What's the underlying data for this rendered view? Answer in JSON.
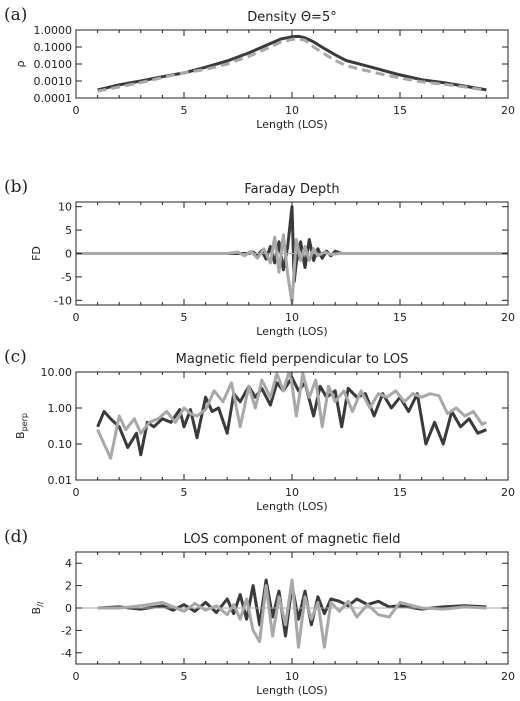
{
  "chart_data": [
    {
      "panel": "(a)",
      "type": "line",
      "title": "Density Θ=5°",
      "xlabel": "Length (LOS)",
      "ylabel": "ρ",
      "yscale": "log",
      "xlim": [
        0,
        20
      ],
      "ylim": [
        0.0001,
        1.0
      ],
      "xticks": [
        "0",
        "5",
        "10",
        "15",
        "20"
      ],
      "yticks": [
        "0.0001",
        "0.0010",
        "0.0100",
        "0.1000",
        "1.0000"
      ],
      "grid": false,
      "series": [
        {
          "style": "solid",
          "color": "#3a3a3a",
          "x": [
            1,
            2,
            3,
            4,
            5,
            6,
            7,
            8,
            9,
            9.5,
            10,
            10.3,
            10.6,
            11,
            11.5,
            12,
            12.5,
            13,
            14,
            15,
            16,
            17,
            18,
            19
          ],
          "y": [
            0.0003,
            0.0006,
            0.001,
            0.0018,
            0.003,
            0.0065,
            0.015,
            0.045,
            0.16,
            0.3,
            0.4,
            0.42,
            0.35,
            0.2,
            0.08,
            0.035,
            0.016,
            0.011,
            0.005,
            0.0023,
            0.0012,
            0.0008,
            0.0005,
            0.0003
          ]
        },
        {
          "style": "dashed",
          "color": "#a8a8a8",
          "x": [
            1,
            2,
            3,
            4,
            5,
            6,
            7,
            8,
            9,
            9.5,
            10,
            10.3,
            10.6,
            11,
            11.5,
            12,
            12.5,
            13,
            14,
            15,
            16,
            17,
            18,
            19
          ],
          "y": [
            0.00025,
            0.00045,
            0.0008,
            0.0016,
            0.003,
            0.0048,
            0.01,
            0.028,
            0.1,
            0.2,
            0.28,
            0.3,
            0.25,
            0.1,
            0.04,
            0.016,
            0.008,
            0.0055,
            0.0028,
            0.0015,
            0.0009,
            0.00065,
            0.00045,
            0.00028
          ]
        }
      ]
    },
    {
      "panel": "(b)",
      "type": "line",
      "title": "Faraday Depth",
      "xlabel": "Length (LOS)",
      "ylabel": "FD",
      "xlim": [
        0,
        20
      ],
      "ylim": [
        -11,
        11
      ],
      "xticks": [
        "0",
        "5",
        "10",
        "15",
        "20"
      ],
      "yticks": [
        "-10",
        "-5",
        "0",
        "5",
        "10"
      ],
      "grid": false,
      "series": [
        {
          "style": "solid",
          "color": "#3a3a3a",
          "x": [
            0,
            7.0,
            8.0,
            8.2,
            8.4,
            8.6,
            8.8,
            9.0,
            9.2,
            9.4,
            9.6,
            9.8,
            10.0,
            10.1,
            10.2,
            10.4,
            10.6,
            10.8,
            11.0,
            11.2,
            11.4,
            11.6,
            11.8,
            12.0,
            12.3,
            12.6,
            20
          ],
          "y": [
            0,
            0,
            0,
            0.3,
            -0.4,
            0.6,
            -1.2,
            1.5,
            -2.0,
            2.5,
            -3.5,
            1.5,
            10.0,
            -6.0,
            -2.0,
            2.5,
            -3.0,
            3.0,
            -1.5,
            1.0,
            -1.0,
            0.5,
            -0.5,
            0.5,
            0,
            0,
            0
          ]
        },
        {
          "style": "solid",
          "color": "#a8a8a8",
          "x": [
            0,
            7.0,
            7.5,
            7.8,
            8.1,
            8.4,
            8.7,
            9.0,
            9.2,
            9.4,
            9.6,
            9.8,
            10.0,
            10.2,
            10.4,
            10.6,
            10.8,
            11.0,
            11.2,
            11.5,
            11.8,
            12.2,
            20
          ],
          "y": [
            0,
            0,
            0.3,
            -0.5,
            0.5,
            -1.0,
            1.0,
            -2.0,
            3.5,
            -4.0,
            4.0,
            -4.5,
            -10.5,
            3.0,
            -1.5,
            1.5,
            -1.5,
            1.0,
            -0.5,
            0.3,
            -0.2,
            0,
            0
          ]
        }
      ]
    },
    {
      "panel": "(c)",
      "type": "line",
      "title": "Magnetic field perpendicular to LOS",
      "xlabel": "Length (LOS)",
      "ylabel": "B",
      "ylabel_sub": "perp",
      "yscale": "log",
      "xlim": [
        0,
        20
      ],
      "ylim": [
        0.01,
        10.0
      ],
      "xticks": [
        "0",
        "5",
        "10",
        "15",
        "20"
      ],
      "yticks": [
        "0.01",
        "0.10",
        "1.00",
        "10.00"
      ],
      "grid": false,
      "series": [
        {
          "style": "solid",
          "color": "#3a3a3a",
          "x": [
            1.0,
            1.3,
            1.6,
            2.0,
            2.4,
            2.8,
            3.0,
            3.3,
            3.6,
            4.0,
            4.4,
            4.8,
            5.0,
            5.3,
            5.6,
            6.0,
            6.3,
            6.6,
            7.0,
            7.3,
            7.6,
            8.0,
            8.3,
            8.6,
            9.0,
            9.3,
            9.6,
            10.0,
            10.3,
            10.6,
            11.0,
            11.3,
            11.6,
            12.0,
            12.3,
            12.6,
            13.0,
            13.4,
            13.8,
            14.2,
            14.6,
            15.0,
            15.4,
            15.8,
            16.2,
            16.6,
            17.0,
            17.4,
            17.8,
            18.2,
            18.6,
            19.0
          ],
          "y": [
            0.3,
            0.8,
            0.5,
            0.3,
            0.08,
            0.2,
            0.05,
            0.4,
            0.3,
            0.5,
            0.4,
            0.9,
            0.3,
            0.9,
            0.15,
            2.0,
            0.8,
            1.0,
            0.2,
            2.5,
            1.5,
            4.0,
            2.0,
            3.5,
            1.2,
            5.0,
            3.0,
            7.0,
            3.0,
            5.0,
            0.6,
            4.0,
            2.0,
            3.0,
            0.3,
            3.5,
            2.0,
            2.5,
            0.6,
            2.5,
            1.0,
            2.0,
            0.8,
            2.5,
            0.1,
            0.4,
            0.1,
            0.8,
            0.3,
            0.5,
            0.2,
            0.25
          ]
        },
        {
          "style": "solid",
          "color": "#a8a8a8",
          "x": [
            1.0,
            1.3,
            1.6,
            2.0,
            2.3,
            2.7,
            3.0,
            3.4,
            3.8,
            4.2,
            4.6,
            5.0,
            5.3,
            5.6,
            6.0,
            6.4,
            6.8,
            7.2,
            7.6,
            8.0,
            8.3,
            8.6,
            9.0,
            9.3,
            9.6,
            9.9,
            10.2,
            10.5,
            10.8,
            11.1,
            11.4,
            11.7,
            12.0,
            12.4,
            12.8,
            13.2,
            13.6,
            14.0,
            14.4,
            14.8,
            15.2,
            15.6,
            16.0,
            16.4,
            16.8,
            17.2,
            17.6,
            18.0,
            18.4,
            18.8,
            19.0
          ],
          "y": [
            0.25,
            0.1,
            0.04,
            0.6,
            0.25,
            0.5,
            0.2,
            0.4,
            0.5,
            0.8,
            0.4,
            1.0,
            0.7,
            0.6,
            0.9,
            3.0,
            1.5,
            5.0,
            0.3,
            4.0,
            1.0,
            6.0,
            2.0,
            9.0,
            3.0,
            12.0,
            0.6,
            9.0,
            2.0,
            6.0,
            0.3,
            4.0,
            1.5,
            3.0,
            0.8,
            3.0,
            1.0,
            2.5,
            2.0,
            3.0,
            1.5,
            2.5,
            2.0,
            2.5,
            2.2,
            0.7,
            1.0,
            0.6,
            0.8,
            0.35,
            0.4
          ]
        }
      ]
    },
    {
      "panel": "(d)",
      "type": "line",
      "title": "LOS component of magnetic field",
      "xlabel": "Length (LOS)",
      "ylabel": "B",
      "ylabel_sub": "//",
      "xlim": [
        0,
        20
      ],
      "ylim": [
        -5,
        5
      ],
      "xticks": [
        "0",
        "5",
        "10",
        "15",
        "20"
      ],
      "yticks": [
        "-4",
        "-2",
        "0",
        "2",
        "4"
      ],
      "grid": false,
      "series": [
        {
          "style": "solid",
          "color": "#3a3a3a",
          "x": [
            1,
            2,
            3,
            4,
            4.5,
            5,
            5.5,
            6,
            6.5,
            7.0,
            7.3,
            7.6,
            7.9,
            8.2,
            8.5,
            8.8,
            9.1,
            9.4,
            9.7,
            10.0,
            10.3,
            10.6,
            10.9,
            11.2,
            11.5,
            11.8,
            12.2,
            12.6,
            13.0,
            13.5,
            14.0,
            14.5,
            15,
            16,
            17,
            18,
            19
          ],
          "y": [
            0,
            0.1,
            -0.1,
            0.2,
            -0.2,
            0.3,
            -0.3,
            0.5,
            -0.4,
            0.8,
            -0.5,
            1.2,
            -1.0,
            2.0,
            -1.5,
            2.5,
            -0.8,
            1.5,
            -2.5,
            2.0,
            -1.0,
            1.5,
            -1.5,
            1.0,
            -0.5,
            0.8,
            0.6,
            0.2,
            0.8,
            0.3,
            0.6,
            0.1,
            0.2,
            -0.1,
            0.1,
            0.2,
            0.1
          ]
        },
        {
          "style": "solid",
          "color": "#a8a8a8",
          "x": [
            1,
            2,
            3,
            4,
            4.5,
            5,
            5.5,
            6,
            6.5,
            7.0,
            7.3,
            7.6,
            7.9,
            8.2,
            8.5,
            8.8,
            9.1,
            9.4,
            9.7,
            10.0,
            10.3,
            10.6,
            10.9,
            11.2,
            11.5,
            11.8,
            12.2,
            12.6,
            13.0,
            13.5,
            14.0,
            14.5,
            15,
            16,
            17,
            18,
            19
          ],
          "y": [
            0,
            0,
            0.2,
            0.5,
            0.1,
            -0.3,
            0.4,
            -0.2,
            0.2,
            -0.6,
            0.3,
            -1.0,
            0.8,
            -2.0,
            -3.0,
            2.0,
            -2.5,
            1.0,
            -1.5,
            2.5,
            -3.5,
            1.0,
            -1.0,
            0.5,
            -3.5,
            0.5,
            -0.3,
            0.6,
            -0.8,
            0.3,
            -0.6,
            -0.8,
            0.5,
            0,
            -0.1,
            0.1,
            0
          ]
        }
      ]
    }
  ]
}
